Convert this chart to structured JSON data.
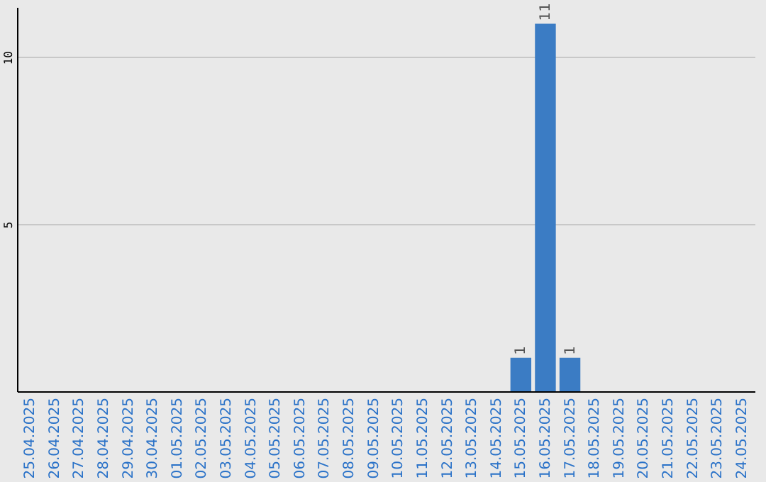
{
  "chart_data": {
    "type": "bar",
    "categories": [
      "25.04.2025",
      "26.04.2025",
      "27.04.2025",
      "28.04.2025",
      "29.04.2025",
      "30.04.2025",
      "01.05.2025",
      "02.05.2025",
      "03.05.2025",
      "04.05.2025",
      "05.05.2025",
      "06.05.2025",
      "07.05.2025",
      "08.05.2025",
      "09.05.2025",
      "10.05.2025",
      "11.05.2025",
      "12.05.2025",
      "13.05.2025",
      "14.05.2025",
      "15.05.2025",
      "16.05.2025",
      "17.05.2025",
      "18.05.2025",
      "19.05.2025",
      "20.05.2025",
      "21.05.2025",
      "22.05.2025",
      "23.05.2025",
      "24.05.2025"
    ],
    "values": [
      0,
      0,
      0,
      0,
      0,
      0,
      0,
      0,
      0,
      0,
      0,
      0,
      0,
      0,
      0,
      0,
      0,
      0,
      0,
      0,
      1,
      11,
      1,
      0,
      0,
      0,
      0,
      0,
      0,
      0
    ],
    "value_labels": [
      null,
      null,
      null,
      null,
      null,
      null,
      null,
      null,
      null,
      null,
      null,
      null,
      null,
      null,
      null,
      null,
      null,
      null,
      null,
      null,
      "1",
      "11",
      "1",
      null,
      null,
      null,
      null,
      null,
      null,
      null
    ],
    "color": "#3b7cc4",
    "ylim": [
      0,
      11.5
    ],
    "yticks": [
      5,
      10
    ],
    "grid": "y"
  }
}
